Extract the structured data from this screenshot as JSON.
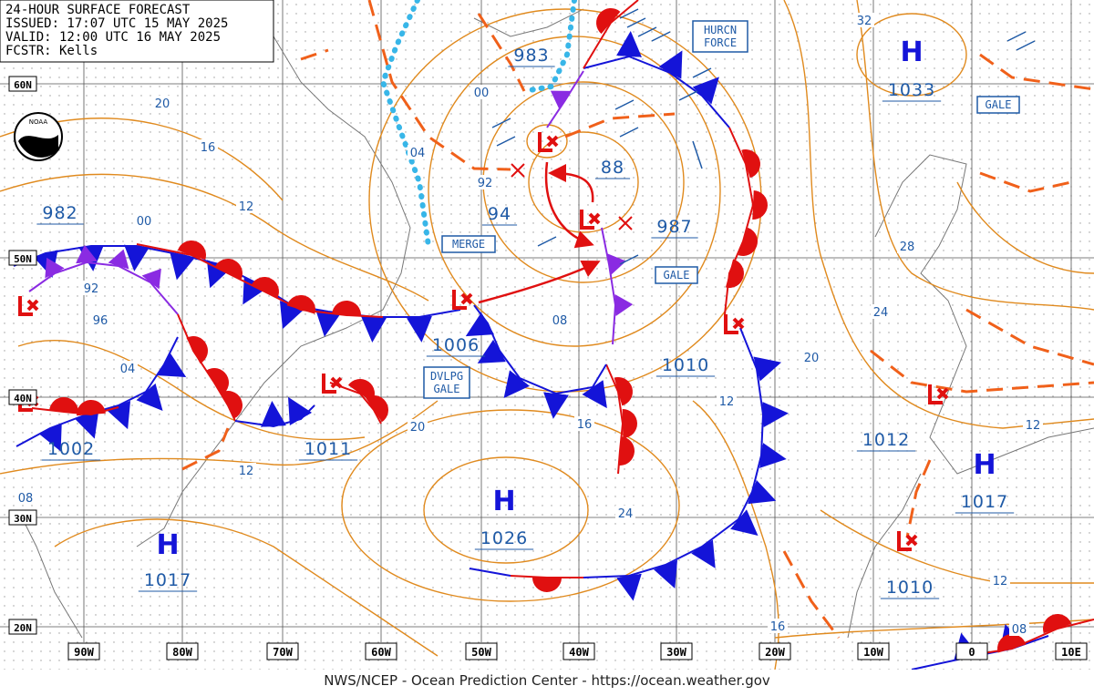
{
  "header": {
    "title": "24-HOUR SURFACE FORECAST",
    "issued": "ISSUED: 17:07 UTC 15 MAY 2025",
    "valid": "VALID: 12:00 UTC 16 MAY 2025",
    "forecaster": "FCSTR: Kells"
  },
  "logo": "NOAA",
  "latitude_labels": [
    "60N",
    "50N",
    "40N",
    "30N",
    "20N"
  ],
  "longitude_labels": [
    "90W",
    "80W",
    "70W",
    "60W",
    "50W",
    "40W",
    "30W",
    "20W",
    "10W",
    "0",
    "10E"
  ],
  "pressure_centers": [
    {
      "symbol": "H",
      "pressure": 1033
    },
    {
      "pressure": 983
    },
    {
      "pressure": 88
    },
    {
      "pressure": 987
    },
    {
      "pressure": 94
    },
    {
      "pressure": 982
    },
    {
      "pressure": 1006
    },
    {
      "pressure": 1010
    },
    {
      "pressure": 1002
    },
    {
      "pressure": 1011
    },
    {
      "pressure": 1012
    },
    {
      "symbol": "H",
      "pressure": 1017
    },
    {
      "symbol": "H",
      "pressure": 1026
    },
    {
      "symbol": "H",
      "pressure": 1017
    },
    {
      "pressure": 1010
    }
  ],
  "boxed_labels": [
    "HURCN FORCE",
    "GALE",
    "GALE",
    "DVLPG GALE",
    "MERGE"
  ],
  "isobar_labels": [
    "32",
    "00",
    "04",
    "92",
    "20",
    "16",
    "12",
    "00",
    "92",
    "96",
    "04",
    "08",
    "28",
    "24",
    "20",
    "12",
    "16",
    "20",
    "12",
    "08",
    "24",
    "12",
    "12",
    "16",
    "08"
  ],
  "footer": "NWS/NCEP - Ocean Prediction Center - https://ocean.weather.gov"
}
